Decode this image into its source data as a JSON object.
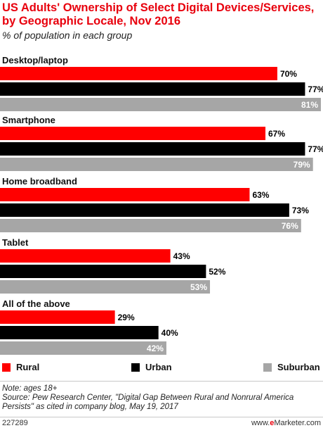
{
  "header": {
    "title": "US Adults' Ownership of Select Digital Devices/Services, by Geographic Locale, Nov 2016",
    "subtitle": "% of population in each group"
  },
  "colors": {
    "rural": "#ff0000",
    "urban": "#000000",
    "suburban": "#a6a6a6",
    "title": "#e8000d"
  },
  "chart_data": {
    "type": "bar",
    "orientation": "horizontal",
    "categories": [
      "Desktop/laptop",
      "Smartphone",
      "Home broadband",
      "Tablet",
      "All of the above"
    ],
    "series": [
      {
        "name": "Rural",
        "values": [
          70,
          67,
          63,
          43,
          29
        ]
      },
      {
        "name": "Urban",
        "values": [
          77,
          77,
          73,
          52,
          40
        ]
      },
      {
        "name": "Suburban",
        "values": [
          81,
          79,
          76,
          53,
          42
        ]
      }
    ],
    "value_labels": [
      [
        "70%",
        "67%",
        "63%",
        "43%",
        "29%"
      ],
      [
        "77%",
        "77%",
        "73%",
        "52%",
        "40%"
      ],
      [
        "81%",
        "79%",
        "76%",
        "53%",
        "42%"
      ]
    ],
    "legend_position": "bottom",
    "grid": false
  },
  "legend": {
    "rural": "Rural",
    "urban": "Urban",
    "suburban": "Suburban"
  },
  "notes": {
    "note": "Note: ages 18+",
    "source": "Source: Pew Research Center, \"Digital Gap Between Rural and Nonrural America Persists\" as cited in company blog, May 19, 2017"
  },
  "footer": {
    "id": "227289",
    "brand_prefix": "www.",
    "brand_e": "e",
    "brand_suffix": "Marketer.com"
  }
}
